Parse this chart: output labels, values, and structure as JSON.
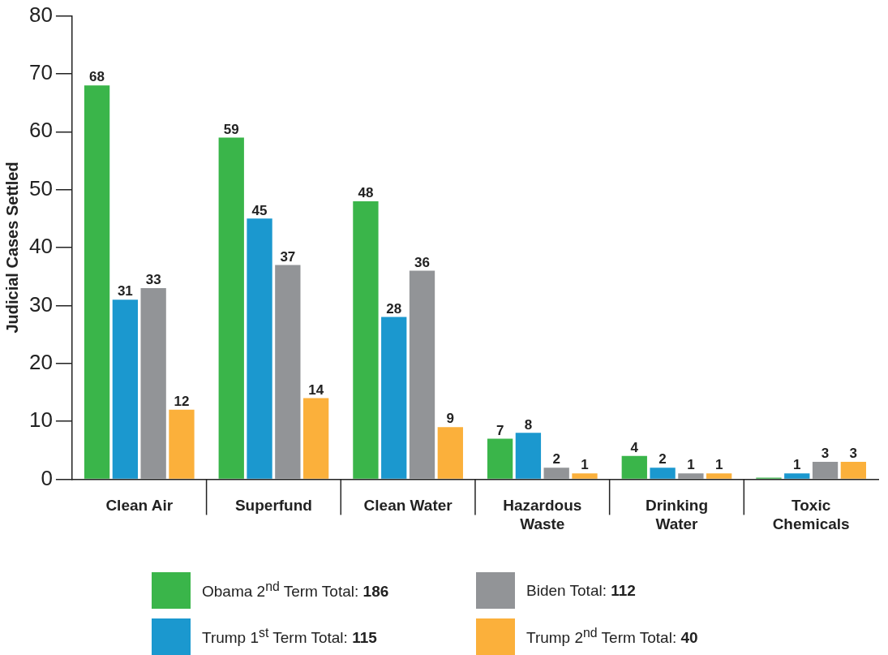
{
  "chart_data": {
    "type": "bar",
    "ylabel": "Judicial Cases Settled",
    "categories": [
      "Clean Air",
      "Superfund",
      "Clean Water",
      "Hazardous Waste",
      "Drinking Water",
      "Toxic Chemicals"
    ],
    "series": [
      {
        "name": "Obama 2$^{nd}$ Term Total: 186",
        "color": "#3ab54a",
        "values": [
          68,
          59,
          48,
          7,
          4,
          0
        ],
        "value_labels": [
          "68",
          "59",
          "48",
          "7",
          "4",
          null
        ]
      },
      {
        "name": "Trump 1$^{st}$ Term Total: 115",
        "color": "#1b98cf",
        "values": [
          31,
          45,
          28,
          8,
          2,
          1
        ],
        "value_labels": [
          "31",
          "45",
          "28",
          "8",
          "2",
          "1"
        ]
      },
      {
        "name": "Biden Total: 112",
        "color": "#929497",
        "values": [
          33,
          37,
          36,
          2,
          1,
          3
        ],
        "value_labels": [
          "33",
          "37",
          "36",
          "2",
          "1",
          "3"
        ]
      },
      {
        "name": "Trump 2$^{nd}$ Term Total: 40",
        "color": "#fbb03b",
        "values": [
          12,
          14,
          9,
          1,
          1,
          3
        ],
        "value_labels": [
          "12",
          "14",
          "9",
          "1",
          "1",
          "3"
        ]
      }
    ],
    "ylim": [
      0,
      80
    ],
    "yticks": [
      0,
      10,
      20,
      30,
      40,
      50,
      60,
      70,
      80
    ],
    "grid": false,
    "legend": "bottom"
  }
}
